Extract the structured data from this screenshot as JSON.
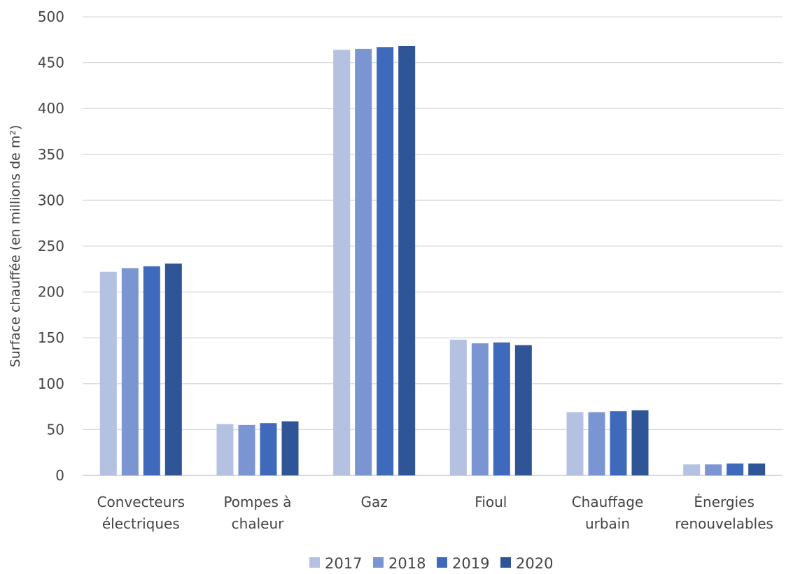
{
  "chart_data": {
    "type": "bar",
    "title": "",
    "xlabel": "",
    "ylabel": "Surface chauffée (en millions de m²)",
    "ylim": [
      0,
      500
    ],
    "yticks": [
      0,
      50,
      100,
      150,
      200,
      250,
      300,
      350,
      400,
      450,
      500
    ],
    "grid": true,
    "legend_position": "bottom",
    "categories": [
      [
        "Convecteurs",
        "électriques"
      ],
      [
        "Pompes à",
        "chaleur"
      ],
      [
        "Gaz"
      ],
      [
        "Fioul"
      ],
      [
        "Chauffage",
        "urbain"
      ],
      [
        "Énergies",
        "renouvelables"
      ]
    ],
    "series": [
      {
        "name": "2017",
        "color": "#b4c1e1",
        "values": [
          222,
          56,
          464,
          148,
          69,
          12
        ]
      },
      {
        "name": "2018",
        "color": "#7b95d2",
        "values": [
          226,
          55,
          465,
          144,
          69,
          12
        ]
      },
      {
        "name": "2019",
        "color": "#3f6abc",
        "values": [
          228,
          57,
          467,
          145,
          70,
          13
        ]
      },
      {
        "name": "2020",
        "color": "#2f5597",
        "values": [
          231,
          59,
          468,
          142,
          71,
          13
        ]
      }
    ]
  }
}
